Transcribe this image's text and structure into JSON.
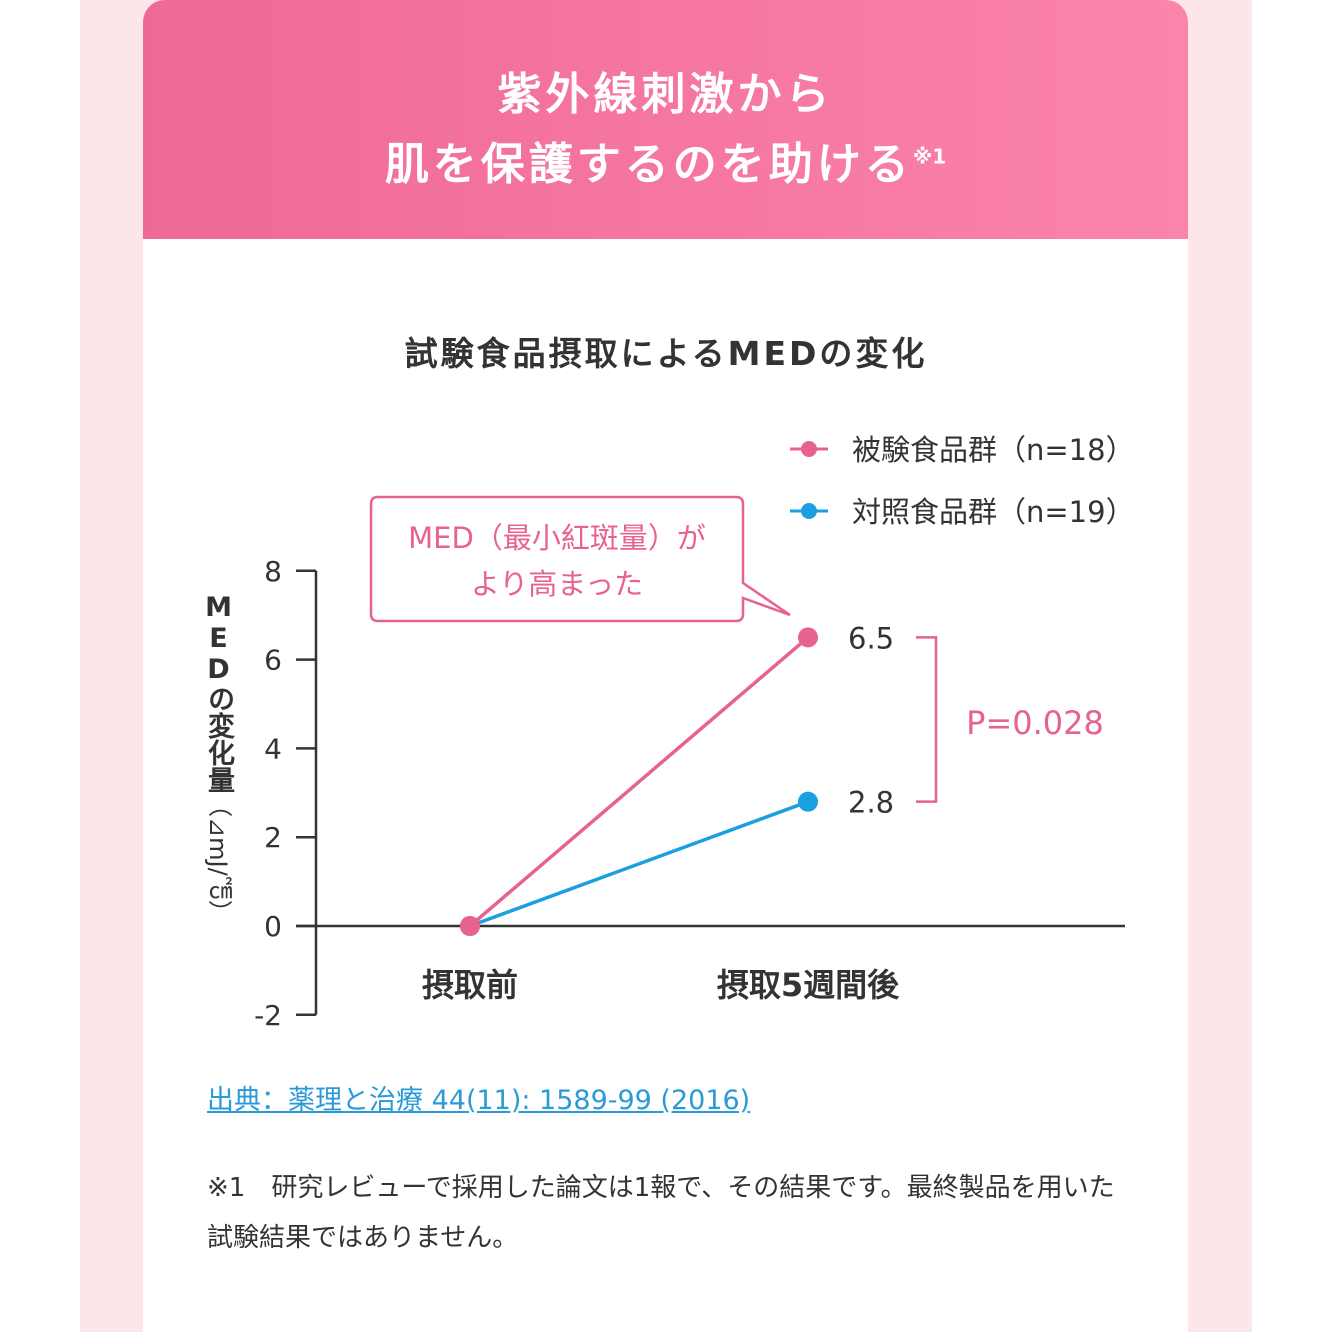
{
  "header": {
    "line1": "紫外線刺激から",
    "line2": "肌を保護するのを助ける",
    "footnote_mark": "※1"
  },
  "colors": {
    "header_start": "#ef6996",
    "header_end": "#fb84ab",
    "test_group": "#e8628f",
    "control_group": "#1a9fe0",
    "background": "#fce6ea"
  },
  "chart_data": {
    "type": "line",
    "title": "試験食品摂取によるMEDの変化",
    "ylabel_main": "MEDの変化量",
    "ylabel_unit": "（⊿mJ/㎠）",
    "ylim": [
      -2,
      8
    ],
    "yticks": [
      "-2",
      "0",
      "2",
      "4",
      "6",
      "8"
    ],
    "categories": [
      "摂取前",
      "摂取5週間後"
    ],
    "series": [
      {
        "name": "被験食品群（n=18）",
        "values": [
          0,
          6.5
        ],
        "label": "6.5"
      },
      {
        "name": "対照食品群（n=19）",
        "values": [
          0,
          2.8
        ],
        "label": "2.8"
      }
    ],
    "legend_placement": "top-right",
    "annotation": {
      "line1": "MED（最小紅斑量）が",
      "line2": "より高まった"
    },
    "p_value": "P=0.028"
  },
  "source_link": "出典：薬理と治療 44(11): 1589-99 (2016)",
  "note": "※1　研究レビューで採用した論文は1報で、その結果です。最終製品を用いた試験結果ではありません。"
}
